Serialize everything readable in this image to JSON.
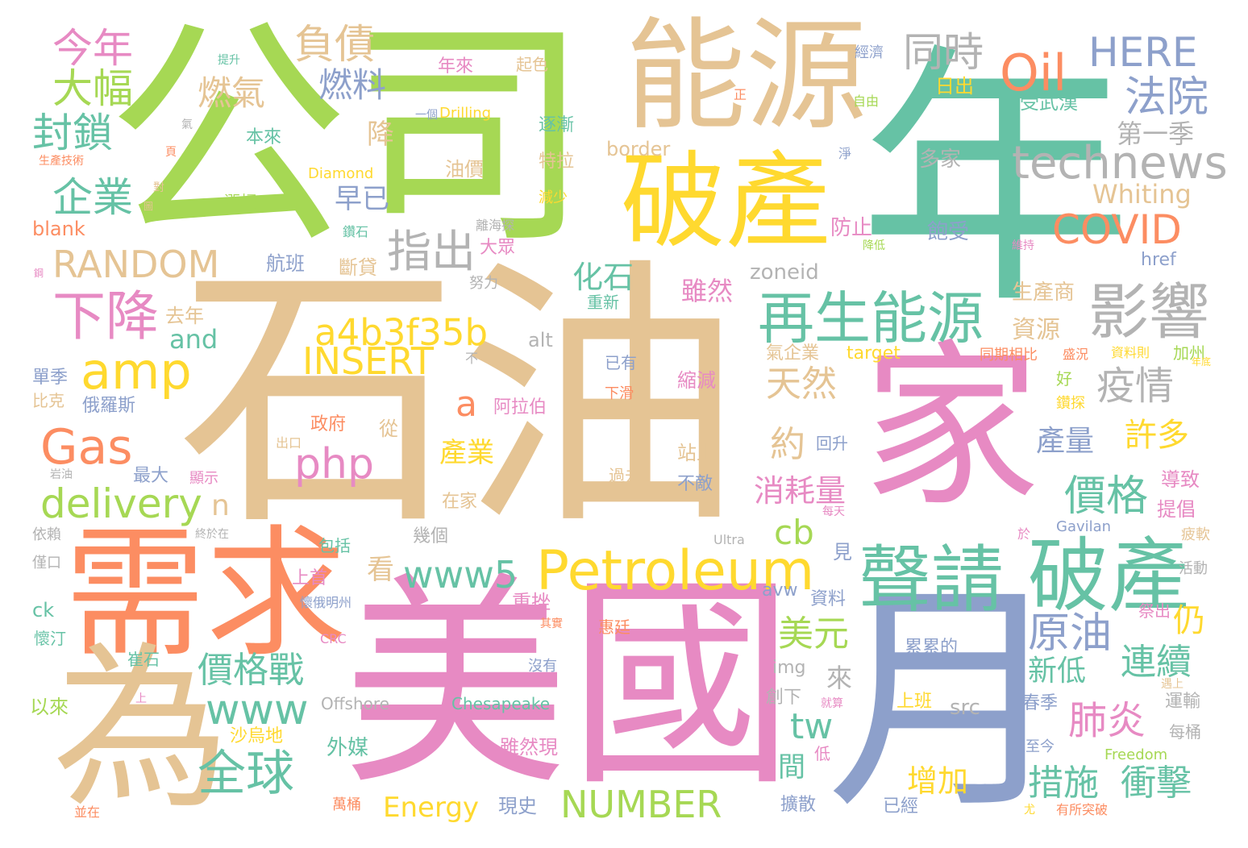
{
  "palette": {
    "orange": "#fc8d62",
    "tan": "#e5c494",
    "green": "#a6d854",
    "teal": "#66c2a5",
    "pink": "#e78ac3",
    "blue": "#8da0cb",
    "yellow": "#ffd92f",
    "gray": "#b3b3b3"
  },
  "words": [
    {
      "text": "石油"
    },
    {
      "text": "公司"
    },
    {
      "text": "年"
    },
    {
      "text": "美國"
    },
    {
      "text": "家"
    },
    {
      "text": "能源"
    },
    {
      "text": "需求"
    },
    {
      "text": "為"
    },
    {
      "text": "月"
    },
    {
      "text": "破產"
    },
    {
      "text": "破產"
    },
    {
      "text": "聲請"
    },
    {
      "text": "再生能源"
    },
    {
      "text": "影響"
    },
    {
      "text": "Petroleum"
    },
    {
      "text": "technews"
    },
    {
      "text": "Gas"
    },
    {
      "text": "amp"
    },
    {
      "text": "Oil"
    },
    {
      "text": "HERE"
    },
    {
      "text": "同時"
    },
    {
      "text": "法院"
    },
    {
      "text": "負債"
    },
    {
      "text": "今年"
    },
    {
      "text": "大幅"
    },
    {
      "text": "封鎖"
    },
    {
      "text": "企業"
    },
    {
      "text": "燃氣"
    },
    {
      "text": "燃料"
    },
    {
      "text": "RANDOM"
    },
    {
      "text": "指出"
    },
    {
      "text": "a4b3f35b"
    },
    {
      "text": "INSERT"
    },
    {
      "text": "php"
    },
    {
      "text": "下降"
    },
    {
      "text": "delivery"
    },
    {
      "text": "COVID"
    },
    {
      "text": "疫情"
    },
    {
      "text": "價格"
    },
    {
      "text": "原油"
    },
    {
      "text": "肺炎"
    },
    {
      "text": "措施"
    },
    {
      "text": "衝擊"
    },
    {
      "text": "連續"
    },
    {
      "text": "價格戰"
    },
    {
      "text": "全球"
    },
    {
      "text": "www"
    },
    {
      "text": "www5"
    },
    {
      "text": "NUMBER"
    },
    {
      "text": "Energy"
    },
    {
      "text": "天然"
    },
    {
      "text": "約"
    },
    {
      "text": "消耗量"
    },
    {
      "text": "美元"
    },
    {
      "text": "tw"
    },
    {
      "text": "cb"
    },
    {
      "text": "第一季"
    },
    {
      "text": "Whiting"
    },
    {
      "text": "早已"
    },
    {
      "text": "化石"
    },
    {
      "text": "許多"
    },
    {
      "text": "產量"
    },
    {
      "text": "新低"
    },
    {
      "text": "仍"
    },
    {
      "text": "增加"
    },
    {
      "text": "a"
    },
    {
      "text": "n"
    },
    {
      "text": "產業"
    },
    {
      "text": "雖然"
    },
    {
      "text": "資源"
    },
    {
      "text": "降"
    },
    {
      "text": "and"
    },
    {
      "text": "看"
    },
    {
      "text": "間"
    },
    {
      "text": "來"
    },
    {
      "text": "zoneid"
    },
    {
      "text": "航班"
    },
    {
      "text": "斷貸"
    },
    {
      "text": "多家"
    },
    {
      "text": "飽受"
    },
    {
      "text": "防止"
    },
    {
      "text": "生產商"
    },
    {
      "text": "受武漢"
    },
    {
      "text": "日出"
    },
    {
      "text": "border"
    },
    {
      "text": "逐漸"
    },
    {
      "text": "特拉"
    },
    {
      "text": "油價"
    },
    {
      "text": "本來"
    },
    {
      "text": "年來"
    },
    {
      "text": "起色"
    },
    {
      "text": "Drilling"
    },
    {
      "text": "Diamond"
    },
    {
      "text": "blank"
    },
    {
      "text": "漲幅"
    },
    {
      "text": "大眾"
    },
    {
      "text": "去年"
    },
    {
      "text": "俄羅斯"
    },
    {
      "text": "單季"
    },
    {
      "text": "比克"
    },
    {
      "text": "最大"
    },
    {
      "text": "顯示"
    },
    {
      "text": "以來"
    },
    {
      "text": "沙烏地"
    },
    {
      "text": "外媒"
    },
    {
      "text": "雖然現"
    },
    {
      "text": "現史"
    },
    {
      "text": "萬桶"
    },
    {
      "text": "擴散"
    },
    {
      "text": "已經"
    },
    {
      "text": "src"
    },
    {
      "text": "上班"
    },
    {
      "text": "累累的"
    },
    {
      "text": "Chesapeake"
    },
    {
      "text": "Offshore"
    },
    {
      "text": "創下"
    },
    {
      "text": "img"
    },
    {
      "text": "avw"
    },
    {
      "text": "資料"
    },
    {
      "text": "見"
    },
    {
      "text": "上首"
    },
    {
      "text": "重挫"
    },
    {
      "text": "幾個"
    },
    {
      "text": "在家"
    },
    {
      "text": "過去"
    },
    {
      "text": "不敵"
    },
    {
      "text": "站上"
    },
    {
      "text": "出口"
    },
    {
      "text": "從"
    },
    {
      "text": "政府"
    },
    {
      "text": "阿拉伯"
    },
    {
      "text": "已有"
    },
    {
      "text": "下滑"
    },
    {
      "text": "縮減"
    },
    {
      "text": "回升"
    },
    {
      "text": "target"
    },
    {
      "text": "氣企業"
    },
    {
      "text": "同期相比"
    },
    {
      "text": "盛況"
    },
    {
      "text": "資料則"
    },
    {
      "text": "加州"
    },
    {
      "text": "好"
    },
    {
      "text": "鑽探"
    },
    {
      "text": "導致"
    },
    {
      "text": "提倡"
    },
    {
      "text": "疲軟"
    },
    {
      "text": "Gavilan"
    },
    {
      "text": "Ultra"
    },
    {
      "text": "活動"
    },
    {
      "text": "祭出"
    },
    {
      "text": "運輸"
    },
    {
      "text": "每桶"
    },
    {
      "text": "春季"
    },
    {
      "text": "至今"
    },
    {
      "text": "Freedom"
    },
    {
      "text": "有所突破"
    },
    {
      "text": "ck"
    },
    {
      "text": "懷汀"
    },
    {
      "text": "崔石"
    },
    {
      "text": "沒有"
    },
    {
      "text": "惠廷"
    },
    {
      "text": "懷俄明州"
    },
    {
      "text": "包括"
    },
    {
      "text": "CRC"
    },
    {
      "text": "依賴"
    },
    {
      "text": "僅口"
    },
    {
      "text": "努力"
    },
    {
      "text": "重新"
    },
    {
      "text": "alt"
    },
    {
      "text": "不"
    },
    {
      "text": "href"
    },
    {
      "text": "維持"
    },
    {
      "text": "降低"
    },
    {
      "text": "淨"
    },
    {
      "text": "自由"
    },
    {
      "text": "經濟"
    },
    {
      "text": "提升"
    },
    {
      "text": "正"
    },
    {
      "text": "一個"
    },
    {
      "text": "生產技術"
    },
    {
      "text": "頁"
    },
    {
      "text": "氣"
    },
    {
      "text": "對"
    },
    {
      "text": "圖"
    },
    {
      "text": "減少"
    },
    {
      "text": "鑽石"
    },
    {
      "text": "離海探"
    },
    {
      "text": "鋼"
    },
    {
      "text": "岩油"
    },
    {
      "text": "上"
    },
    {
      "text": "並在"
    },
    {
      "text": "就算"
    },
    {
      "text": "低"
    },
    {
      "text": "其實"
    },
    {
      "text": "每天"
    },
    {
      "text": "於"
    },
    {
      "text": "尤"
    },
    {
      "text": "遇上"
    },
    {
      "text": "年底"
    },
    {
      "text": "終於在"
    }
  ]
}
